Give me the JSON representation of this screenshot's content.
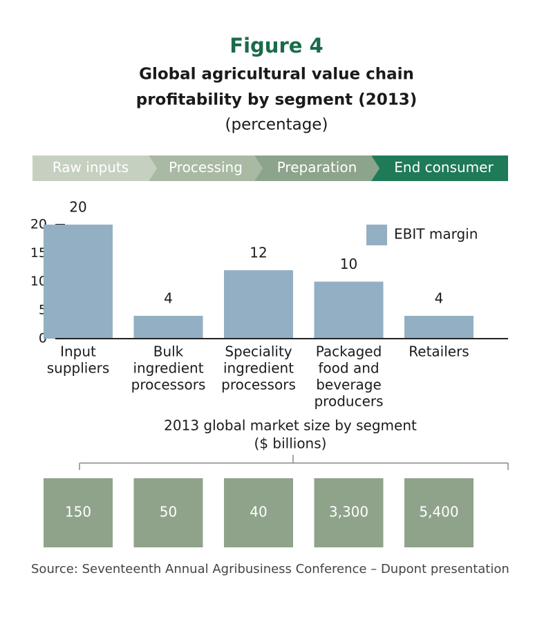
{
  "chart_data": {
    "type": "bar",
    "title": "Figure 4",
    "subtitle": [
      "Global agricultural value chain",
      "profitability by segment (2013)"
    ],
    "unit_note": "(percentage)",
    "chain": [
      "Raw inputs",
      "Processing",
      "Preparation",
      "End consumer"
    ],
    "categories": [
      [
        "Input",
        "suppliers"
      ],
      [
        "Bulk",
        "ingredient",
        "processors"
      ],
      [
        "Speciality",
        "ingredient",
        "processors"
      ],
      [
        "Packaged",
        "food and",
        "beverage",
        "producers"
      ],
      [
        "Retailers"
      ]
    ],
    "series": [
      {
        "name": "EBIT margin",
        "color": "#93afc3",
        "values": [
          20,
          4,
          12,
          10,
          4
        ]
      }
    ],
    "ylim": [
      0,
      20
    ],
    "yticks": [
      0,
      5,
      10,
      15,
      20
    ],
    "market_size": {
      "title": [
        "2013 global market size by segment",
        "($ billions)"
      ],
      "values": [
        150,
        50,
        40,
        3300,
        5400
      ],
      "value_labels": [
        "150",
        "50",
        "40",
        "3,300",
        "5,400"
      ]
    },
    "source": "Source: Seventeenth Annual Agribusiness Conference – Dupont presentation"
  }
}
